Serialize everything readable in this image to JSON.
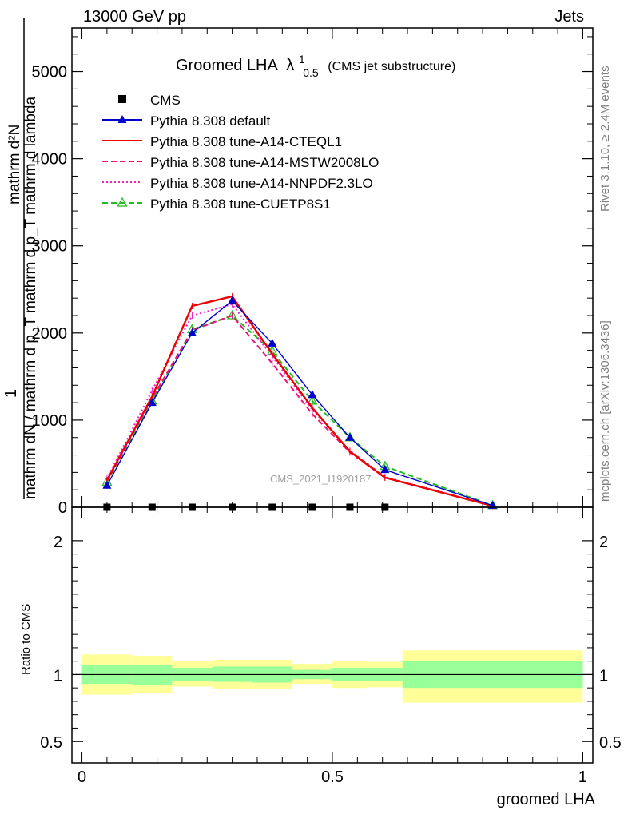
{
  "header": {
    "left": "13000 GeV pp",
    "right": "Jets"
  },
  "side_labels": {
    "rivet": "Rivet 3.1.10, ≥ 2.4M events",
    "mcplots": "mcplots.cern.ch [arXiv:1306.3436]"
  },
  "watermark": "CMS_2021_I1920187",
  "chart_data": [
    {
      "type": "line",
      "title": "Groomed LHA",
      "title_symbol": "λ",
      "title_sup": "1",
      "title_sub": "0.5",
      "subtitle": "(CMS jet substructure)",
      "ylabel_top": "1",
      "ylabel_frac_num": "mathrm d²N",
      "ylabel_frac_den": "mathrm dN / mathrm d p_T mathrm d p_T mathrm d lambda",
      "ylim": [
        0,
        5500
      ],
      "yticks": [
        0,
        1000,
        2000,
        3000,
        4000,
        5000
      ],
      "ytick_labels": [
        "0",
        "1000",
        "2000",
        "3000",
        "4000",
        "5000"
      ],
      "xlim": [
        -0.02,
        1.02
      ],
      "x": [
        0.05,
        0.14,
        0.22,
        0.3,
        0.38,
        0.46,
        0.535,
        0.605,
        0.82
      ],
      "data": {
        "name": "CMS",
        "x": [
          0.05,
          0.14,
          0.22,
          0.3,
          0.38,
          0.46,
          0.535,
          0.605
        ],
        "y": [
          0,
          0,
          0,
          0,
          0,
          0,
          0,
          0
        ]
      },
      "series": [
        {
          "name": "Pythia 8.308 default",
          "color": "#0000cc",
          "marker": "triangle-filled",
          "dash": "solid",
          "values": [
            250,
            1200,
            2000,
            2370,
            1880,
            1290,
            800,
            430,
            20
          ]
        },
        {
          "name": "Pythia 8.308 tune-A14-CTEQL1",
          "color": "#ee0000",
          "marker": "none",
          "dash": "solid",
          "values": [
            310,
            1270,
            2310,
            2420,
            1760,
            1140,
            640,
            340,
            15
          ]
        },
        {
          "name": "Pythia 8.308 tune-A14-MSTW2008LO",
          "color": "#ee1177",
          "marker": "none",
          "dash": "dashed",
          "values": [
            300,
            1250,
            2030,
            2200,
            1650,
            1070,
            630,
            340,
            15
          ]
        },
        {
          "name": "Pythia 8.308 tune-A14-NNPDF2.3LO",
          "color": "#ee22cc",
          "marker": "none",
          "dash": "dotted",
          "values": [
            330,
            1340,
            2200,
            2330,
            1730,
            1120,
            650,
            350,
            15
          ]
        },
        {
          "name": "Pythia 8.308 tune-CUETP8S1",
          "color": "#22bb22",
          "marker": "triangle-open",
          "dash": "dashed",
          "values": [
            290,
            1220,
            2040,
            2200,
            1790,
            1220,
            800,
            470,
            20
          ]
        }
      ]
    },
    {
      "type": "area",
      "ylabel": "Ratio to CMS",
      "xlabel": "groomed LHA",
      "ylim": [
        0.34,
        2.25
      ],
      "yticks": [
        0.5,
        1,
        2
      ],
      "ytick_labels": [
        "0.5",
        "1",
        "2"
      ],
      "xticks": [
        0,
        0.5,
        1
      ],
      "xtick_labels": [
        "0",
        "0.5",
        "1"
      ],
      "xlim": [
        -0.02,
        1.02
      ],
      "reference_line": 1,
      "bins": [
        {
          "lo": 0.0,
          "hi": 0.1,
          "inner": [
            0.93,
            1.07
          ],
          "outer": [
            0.85,
            1.15
          ]
        },
        {
          "lo": 0.1,
          "hi": 0.18,
          "inner": [
            0.92,
            1.07
          ],
          "outer": [
            0.86,
            1.14
          ]
        },
        {
          "lo": 0.18,
          "hi": 0.26,
          "inner": [
            0.95,
            1.05
          ],
          "outer": [
            0.91,
            1.1
          ]
        },
        {
          "lo": 0.26,
          "hi": 0.34,
          "inner": [
            0.945,
            1.06
          ],
          "outer": [
            0.895,
            1.11
          ]
        },
        {
          "lo": 0.34,
          "hi": 0.42,
          "inner": [
            0.94,
            1.06
          ],
          "outer": [
            0.89,
            1.11
          ]
        },
        {
          "lo": 0.42,
          "hi": 0.5,
          "inner": [
            0.965,
            1.035
          ],
          "outer": [
            0.93,
            1.08
          ]
        },
        {
          "lo": 0.5,
          "hi": 0.57,
          "inner": [
            0.95,
            1.05
          ],
          "outer": [
            0.9,
            1.1
          ]
        },
        {
          "lo": 0.57,
          "hi": 0.64,
          "inner": [
            0.95,
            1.05
          ],
          "outer": [
            0.905,
            1.095
          ]
        },
        {
          "lo": 0.64,
          "hi": 1.0,
          "inner": [
            0.9,
            1.1
          ],
          "outer": [
            0.79,
            1.18
          ]
        }
      ],
      "band_colors": {
        "inner": "#99ff99",
        "outer": "#ffff99"
      }
    }
  ]
}
